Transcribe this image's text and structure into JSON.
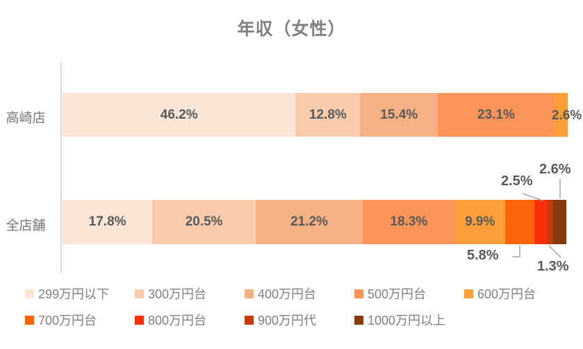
{
  "title": "年収（女性）",
  "chart_data": {
    "type": "bar",
    "variant": "horizontal_stacked",
    "title": "年収（女性）",
    "categories": [
      "高崎店",
      "全店舗"
    ],
    "series": [
      {
        "name": "299万円以下",
        "color": "#FBE5D6",
        "values": [
          46.2,
          17.8
        ]
      },
      {
        "name": "300万円台",
        "color": "#F8CBAD",
        "values": [
          12.8,
          20.5
        ]
      },
      {
        "name": "400万円台",
        "color": "#F4B183",
        "values": [
          15.4,
          21.2
        ]
      },
      {
        "name": "500万円台",
        "color": "#FB9458",
        "values": [
          23.1,
          18.3
        ]
      },
      {
        "name": "600万円台",
        "color": "#FC9F38",
        "values": [
          2.6,
          9.9
        ]
      },
      {
        "name": "700万円台",
        "color": "#FA6309",
        "values": [
          0,
          5.8
        ]
      },
      {
        "name": "800万円台",
        "color": "#F93008",
        "values": [
          0,
          2.5
        ]
      },
      {
        "name": "900万円代",
        "color": "#C43B0C",
        "values": [
          0,
          1.3
        ]
      },
      {
        "name": "1000万円以上",
        "color": "#873C0D",
        "values": [
          0,
          2.6
        ]
      }
    ],
    "value_format": "percent",
    "xlim": [
      0,
      100
    ],
    "grid": false,
    "legend_position": "bottom",
    "callout_labels": {
      "takasaki_600": "2.6%",
      "zentenpo_700": "5.8%",
      "zentenpo_800": "2.5%",
      "zentenpo_900": "1.3%",
      "zentenpo_1000": "2.6%"
    },
    "label_color": "#595959",
    "title_color": "#7F7F7F",
    "axis_color": "#D9D9D9",
    "leader_line_color": "#A6A6A6"
  }
}
